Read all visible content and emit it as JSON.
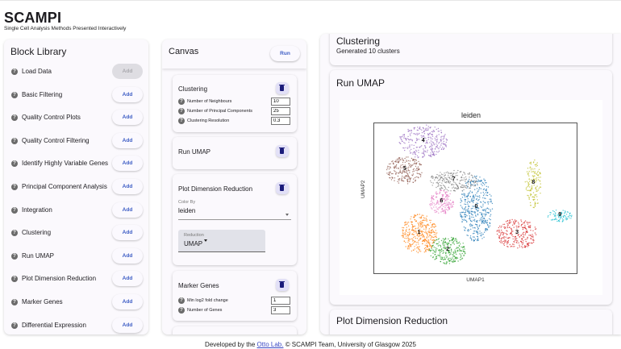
{
  "app": {
    "title": "SCAMPI",
    "subtitle": "Single Cell Analysis Methods Presented Interactively"
  },
  "block_library": {
    "title": "Block Library",
    "items": [
      {
        "label": "Load Data",
        "button": "Add",
        "disabled": true
      },
      {
        "label": "Basic Filtering",
        "button": "Add",
        "disabled": false
      },
      {
        "label": "Quality Control Plots",
        "button": "Add",
        "disabled": false
      },
      {
        "label": "Quality Control Filtering",
        "button": "Add",
        "disabled": false
      },
      {
        "label": "Identify Highly Variable Genes",
        "button": "Add",
        "disabled": false
      },
      {
        "label": "Principal Component Analysis",
        "button": "Add",
        "disabled": false
      },
      {
        "label": "Integration",
        "button": "Add",
        "disabled": false
      },
      {
        "label": "Clustering",
        "button": "Add",
        "disabled": false
      },
      {
        "label": "Run UMAP",
        "button": "Add",
        "disabled": false
      },
      {
        "label": "Plot Dimension Reduction",
        "button": "Add",
        "disabled": false
      },
      {
        "label": "Marker Genes",
        "button": "Add",
        "disabled": false
      },
      {
        "label": "Differential Expression",
        "button": "Add",
        "disabled": false
      }
    ]
  },
  "canvas": {
    "title": "Canvas",
    "run_label": "Run",
    "blocks": {
      "clustering": {
        "title": "Clustering",
        "params": [
          {
            "label": "Number of Neighbours",
            "value": "10"
          },
          {
            "label": "Number of Principal Components",
            "value": "25"
          },
          {
            "label": "Clustering Resolution",
            "value": "0.3"
          }
        ]
      },
      "run_umap": {
        "title": "Run UMAP"
      },
      "plot_dim": {
        "title": "Plot Dimension Reduction",
        "color_by_label": "Color By",
        "color_by_value": "leiden",
        "reduction_label": "Reduction",
        "reduction_value": "UMAP"
      },
      "marker_genes": {
        "title": "Marker Genes",
        "params": [
          {
            "label": "Min log2 fold change",
            "value": "1"
          },
          {
            "label": "Number of Genes",
            "value": "3"
          }
        ]
      }
    }
  },
  "results": {
    "clustering": {
      "title": "Clustering",
      "subtitle": "Generated 10 clusters"
    },
    "run_umap": {
      "title": "Run UMAP"
    },
    "plot_dim": {
      "title": "Plot Dimension Reduction"
    }
  },
  "chart_data": {
    "type": "scatter",
    "title": "leiden",
    "xlabel": "UMAP1",
    "ylabel": "UMAP2",
    "grid": false,
    "legend": "on data",
    "clusters": [
      {
        "label": "0",
        "color": "#1f77b4",
        "center": [
          0.5,
          0.56
        ]
      },
      {
        "label": "1",
        "color": "#ff7f0e",
        "center": [
          0.22,
          0.73
        ]
      },
      {
        "label": "2",
        "color": "#2ca02c",
        "center": [
          0.36,
          0.84
        ]
      },
      {
        "label": "3",
        "color": "#d62728",
        "center": [
          0.7,
          0.73
        ]
      },
      {
        "label": "4",
        "color": "#9467bd",
        "center": [
          0.24,
          0.12
        ]
      },
      {
        "label": "5",
        "color": "#8c564b",
        "center": [
          0.15,
          0.31
        ]
      },
      {
        "label": "6",
        "color": "#e377c2",
        "center": [
          0.33,
          0.52
        ]
      },
      {
        "label": "7",
        "color": "#7f7f7f",
        "center": [
          0.39,
          0.38
        ]
      },
      {
        "label": "8",
        "color": "#bcbd22",
        "center": [
          0.78,
          0.4
        ]
      },
      {
        "label": "9",
        "color": "#17becf",
        "center": [
          0.91,
          0.61
        ]
      }
    ]
  },
  "footer": {
    "prefix": "Developed by the ",
    "link": "Otto Lab.",
    "suffix": " © SCAMPI Team, University of Glasgow 2025"
  }
}
